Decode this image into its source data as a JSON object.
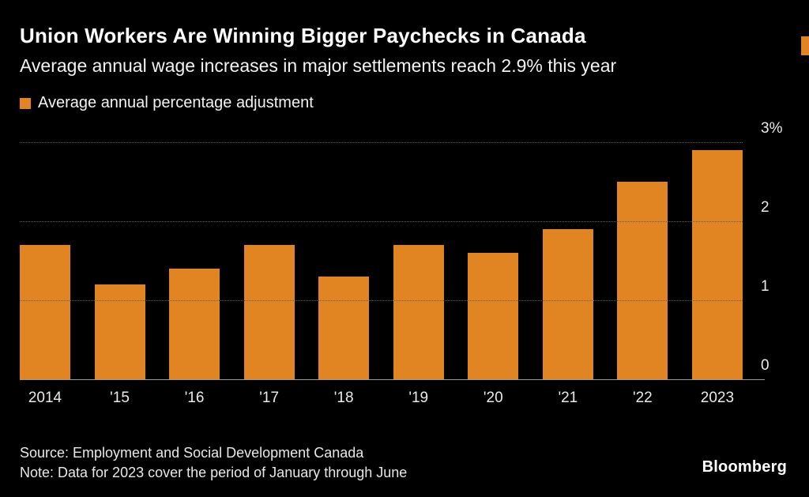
{
  "header": {
    "title": "Union Workers Are Winning Bigger Paychecks in Canada",
    "subtitle": "Average annual wage increases in major settlements reach 2.9% this year"
  },
  "legend": {
    "label": "Average annual percentage adjustment",
    "swatch_color": "#E08521"
  },
  "colors": {
    "background": "#000000",
    "bar": "#E08521",
    "gridline": "#5e5e5e",
    "baseline": "#9a9a9a",
    "text": "#ffffff"
  },
  "chart_data": {
    "type": "bar",
    "title": "Union Workers Are Winning Bigger Paychecks in Canada",
    "categories": [
      "2014",
      "'15",
      "'16",
      "'17",
      "'18",
      "'19",
      "'20",
      "'21",
      "'22",
      "2023"
    ],
    "values": [
      1.7,
      1.2,
      1.4,
      1.7,
      1.3,
      1.7,
      1.6,
      1.9,
      2.5,
      2.9
    ],
    "xlabel": "",
    "ylabel": "",
    "ylim": [
      0,
      3
    ],
    "yticks": [
      {
        "value": 3,
        "label": "3%"
      },
      {
        "value": 2,
        "label": "2"
      },
      {
        "value": 1,
        "label": "1"
      },
      {
        "value": 0,
        "label": "0"
      }
    ],
    "grid": "horizontal-dotted",
    "legend_position": "top-left",
    "bar_color": "#E08521"
  },
  "footer": {
    "source": "Source: Employment and Social Development Canada",
    "note": "Note: Data for 2023 cover the period of January through June",
    "brand": "Bloomberg"
  }
}
